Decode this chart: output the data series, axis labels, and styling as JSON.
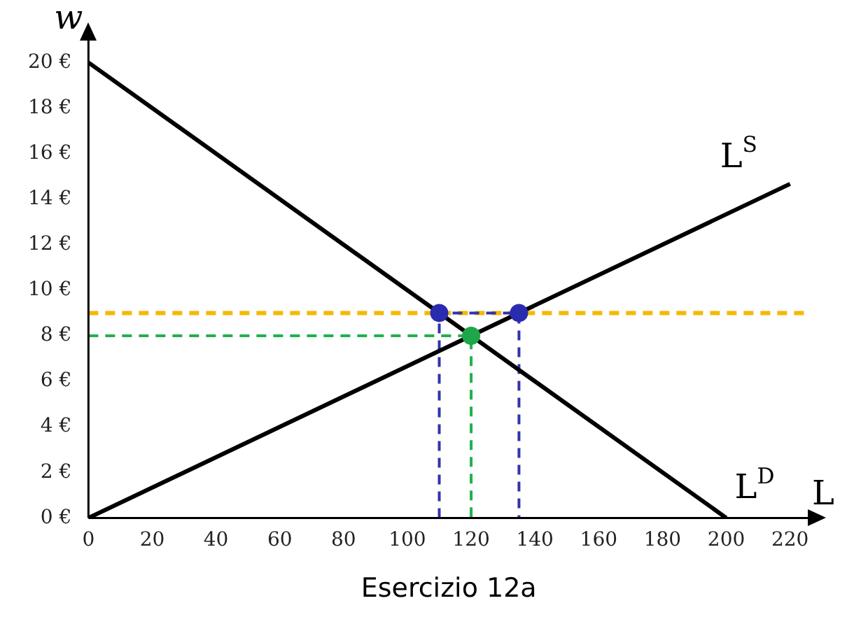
{
  "chart_data": {
    "type": "line",
    "xlabel": "L",
    "ylabel": "w",
    "annotations": [
      "Esercizio 12a"
    ],
    "xlim": [
      0,
      226
    ],
    "ylim": [
      0,
      21
    ],
    "xticks": [
      0,
      20,
      40,
      60,
      80,
      100,
      120,
      140,
      160,
      180,
      200,
      220
    ],
    "yticks": [
      {
        "value": 0,
        "label": "0 €"
      },
      {
        "value": 2,
        "label": "2 €"
      },
      {
        "value": 4,
        "label": "4 €"
      },
      {
        "value": 6,
        "label": "6 €"
      },
      {
        "value": 8,
        "label": "8 €"
      },
      {
        "value": 10,
        "label": "10 €"
      },
      {
        "value": 12,
        "label": "12 €"
      },
      {
        "value": 14,
        "label": "14 €"
      },
      {
        "value": 16,
        "label": "16 €"
      },
      {
        "value": 18,
        "label": "18 €"
      },
      {
        "value": 20,
        "label": "20 €"
      }
    ],
    "grid": false,
    "legend": false,
    "ref_lines": [
      {
        "axis": "y",
        "value": 9,
        "color": "#f5b800",
        "line_style": "dashed"
      }
    ],
    "series": [
      {
        "name": "L$^{D}$",
        "color": "#000000",
        "x": [
          0,
          200
        ],
        "values": [
          20,
          0
        ],
        "marker": "none",
        "line_style": "solid"
      },
      {
        "name": "L$^{S}$",
        "color": "#000000",
        "x": [
          0,
          220
        ],
        "values": [
          0,
          14.67
        ],
        "marker": "none",
        "line_style": "solid"
      },
      {
        "color": "#22b04c",
        "x": [
          0,
          120,
          120
        ],
        "values": [
          8,
          8,
          0
        ],
        "marker": "none",
        "line_style": "dashed"
      },
      {
        "color": "#3333aa",
        "x": [
          110,
          110,
          135,
          135
        ],
        "values": [
          0,
          9,
          9,
          0
        ],
        "marker": "none",
        "line_style": "dashed"
      },
      {
        "type": "scatter",
        "color": "#2b2bb0",
        "x": [
          110,
          135
        ],
        "values": [
          9,
          9
        ],
        "marker": "circle"
      },
      {
        "type": "scatter",
        "color": "#1fa64a",
        "x": [
          120
        ],
        "values": [
          8
        ],
        "marker": "circle"
      }
    ]
  }
}
